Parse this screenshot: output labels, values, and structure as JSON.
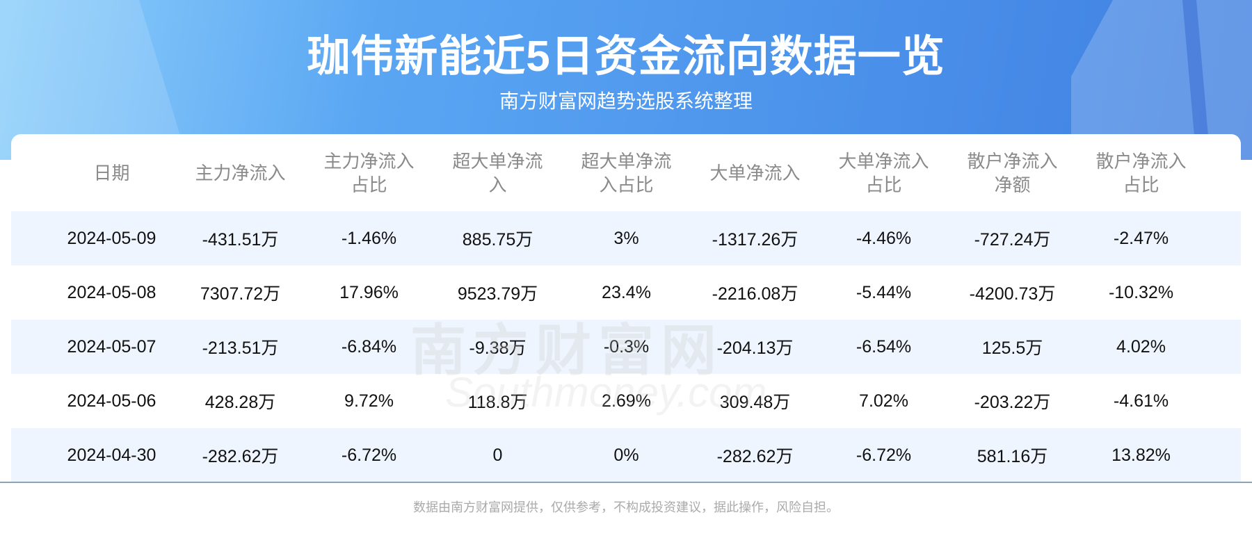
{
  "header": {
    "title": "珈伟新能近5日资金流向数据一览",
    "subtitle": "南方财富网趋势选股系统整理"
  },
  "watermark": {
    "cn": "南方财富网",
    "en": "Southmoney.com"
  },
  "table": {
    "columns": [
      "日期",
      "主力净流入",
      "主力净流入占比",
      "超大单净流入",
      "超大单净流入占比",
      "大单净流入",
      "大单净流入占比",
      "散户净流入净额",
      "散户净流入占比"
    ],
    "rows": [
      [
        "2024-05-09",
        "-431.51万",
        "-1.46%",
        "885.75万",
        "3%",
        "-1317.26万",
        "-4.46%",
        "-727.24万",
        "-2.47%"
      ],
      [
        "2024-05-08",
        "7307.72万",
        "17.96%",
        "9523.79万",
        "23.4%",
        "-2216.08万",
        "-5.44%",
        "-4200.73万",
        "-10.32%"
      ],
      [
        "2024-05-07",
        "-213.51万",
        "-6.84%",
        "-9.38万",
        "-0.3%",
        "-204.13万",
        "-6.54%",
        "125.5万",
        "4.02%"
      ],
      [
        "2024-05-06",
        "428.28万",
        "9.72%",
        "118.8万",
        "2.69%",
        "309.48万",
        "7.02%",
        "-203.22万",
        "-4.61%"
      ],
      [
        "2024-04-30",
        "-282.62万",
        "-6.72%",
        "0",
        "0%",
        "-282.62万",
        "-6.72%",
        "581.16万",
        "13.82%"
      ]
    ]
  },
  "footer": {
    "disclaimer": "数据由南方财富网提供，仅供参考，不构成投资建议，据此操作，风险自担。"
  },
  "colors": {
    "header_blue": "#4a90ea",
    "row_alt": "#eef5fe"
  }
}
